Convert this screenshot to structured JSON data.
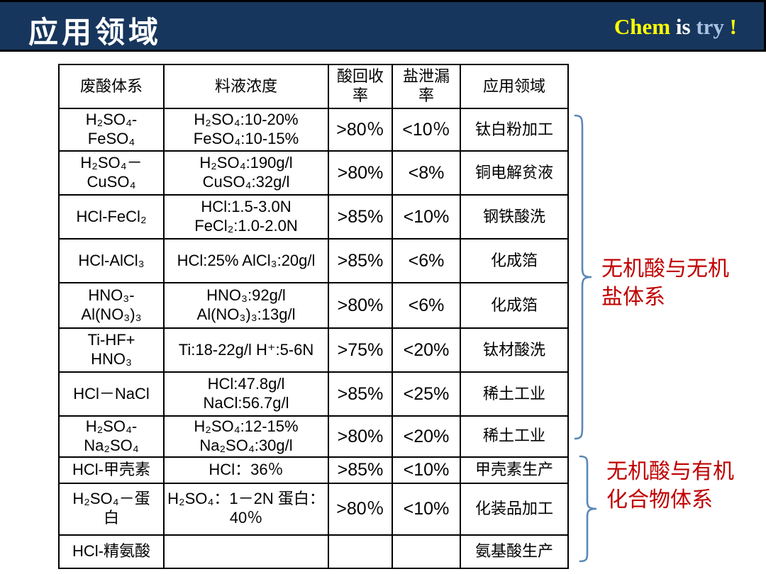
{
  "header": {
    "title": "应用领域",
    "brand": {
      "chem": "Chem",
      "is": " is ",
      "try": "try",
      "exclaim": " !"
    }
  },
  "table": {
    "headers": [
      "废酸体系",
      "料液浓度",
      "酸回收\n率",
      "盐泄漏\n率",
      "应用领域"
    ],
    "rows": [
      [
        "H₂SO₄-\nFeSO₄",
        "H₂SO₄:10-20%\nFeSO₄:10-15%",
        ">80％",
        "<10％",
        "钛白粉加工"
      ],
      [
        "H₂SO₄－\nCuSO₄",
        "H₂SO₄:190g/l\nCuSO₄:32g/l",
        ">80%",
        "<8%",
        "铜电解贫液"
      ],
      [
        "HCl-FeCl₂",
        "HCl:1.5-3.0N\nFeCl₂:1.0-2.0N",
        ">85%",
        "<10%",
        "钢铁酸洗"
      ],
      [
        "HCl-AlCl₃",
        "HCl:25% AlCl₃:20g/l",
        ">85%",
        "<6%",
        "化成箔"
      ],
      [
        "HNO₃-\nAl(NO₃)₃",
        "HNO₃:92g/l\nAl(NO₃)₃:13g/l",
        ">80%",
        "<6%",
        "化成箔"
      ],
      [
        "Ti-HF+\nHNO₃",
        "Ti:18-22g/l  H⁺:5-6N",
        ">75%",
        "<20%",
        "钛材酸洗"
      ],
      [
        "HCl－NaCl",
        "HCl:47.8g/l\nNaCl:56.7g/l",
        ">85%",
        "<25%",
        "稀土工业"
      ],
      [
        "H₂SO₄-\nNa₂SO₄",
        "H₂SO₄:12-15%\nNa₂SO₄:30g/l",
        ">80%",
        "<20%",
        "稀土工业"
      ],
      [
        "HCl-甲壳素",
        "HCl：36％",
        ">85%",
        "<10%",
        "甲壳素生产"
      ],
      [
        "H₂SO₄－蛋\n白",
        "H₂SO₄：1－2N 蛋白：\n40％",
        ">80％",
        "<10%",
        "化装品加工"
      ],
      [
        "HCl-精氨酸",
        "",
        "",
        "",
        "氨基酸生产"
      ]
    ]
  },
  "annotations": {
    "group1": "无机酸与无机\n盐体系",
    "group2": "无机酸与有机\n化合物体系"
  },
  "colors": {
    "header_bg": "#17365d",
    "brand_chem": "#ffff00",
    "brand_is": "#ffffff",
    "brand_try": "#a8c2e2",
    "annotation_red": "#c00000",
    "brace_blue": "#5b87b5",
    "table_border": "#000000"
  }
}
